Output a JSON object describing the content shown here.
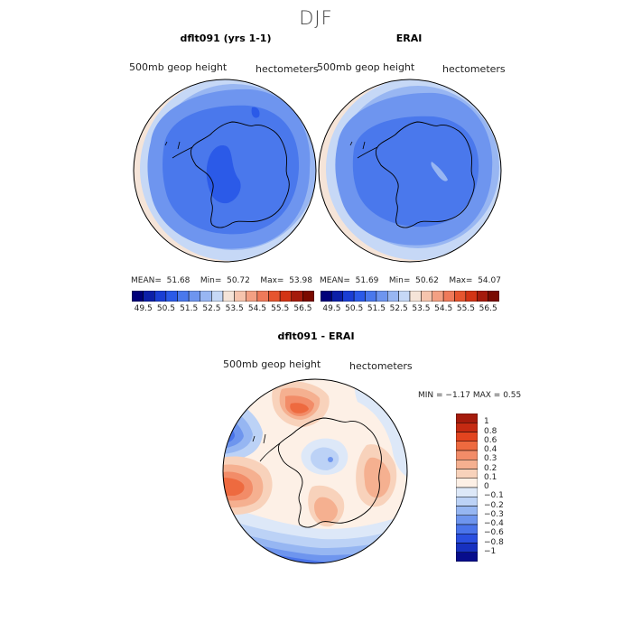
{
  "figure": {
    "title": "DJF",
    "variable_label": "500mb geop height",
    "units_label": "hectometers"
  },
  "panels": {
    "model": {
      "title": "dflt091 (yrs 1-1)",
      "stats": {
        "mean_label": "MEAN=",
        "mean": "51.68",
        "min_label": "Min=",
        "min": "50.72",
        "max_label": "Max=",
        "max": "53.98"
      }
    },
    "obs": {
      "title": "ERAI",
      "stats": {
        "mean_label": "MEAN=",
        "mean": "51.69",
        "min_label": "Min=",
        "min": "50.62",
        "max_label": "Max=",
        "max": "54.07"
      }
    },
    "diff": {
      "title": "dflt091 - ERAI",
      "stats_text": "MIN = −1.17 MAX = 0.55"
    }
  },
  "chart_data": [
    {
      "type": "heatmap",
      "projection": "south-polar-stereographic",
      "title": "dflt091 (yrs 1-1)",
      "variable": "500mb geop height",
      "units": "hectometers",
      "mean": 51.68,
      "min": 50.72,
      "max": 53.98,
      "colorbar": {
        "levels": [
          49.5,
          50.0,
          50.5,
          51.0,
          51.5,
          52.0,
          52.5,
          53.0,
          53.5,
          54.0,
          54.5,
          55.0,
          55.5,
          56.0,
          56.5
        ],
        "tick_labels": [
          "49.5",
          "50.5",
          "51.5",
          "52.5",
          "53.5",
          "54.5",
          "55.5",
          "56.5"
        ],
        "colors": [
          "#00007a",
          "#0c1fa8",
          "#1a3ed4",
          "#2b5ae8",
          "#4a78ec",
          "#6e95ef",
          "#98b6f2",
          "#c6d8f6",
          "#f5e4d8",
          "#f6c4ad",
          "#f3a083",
          "#ef7a5a",
          "#e6552f",
          "#d33415",
          "#a51b0c",
          "#7a0a00"
        ]
      }
    },
    {
      "type": "heatmap",
      "projection": "south-polar-stereographic",
      "title": "ERAI",
      "variable": "500mb geop height",
      "units": "hectometers",
      "mean": 51.69,
      "min": 50.62,
      "max": 54.07,
      "colorbar": {
        "levels": [
          49.5,
          50.0,
          50.5,
          51.0,
          51.5,
          52.0,
          52.5,
          53.0,
          53.5,
          54.0,
          54.5,
          55.0,
          55.5,
          56.0,
          56.5
        ],
        "tick_labels": [
          "49.5",
          "50.5",
          "51.5",
          "52.5",
          "53.5",
          "54.5",
          "55.5",
          "56.5"
        ],
        "colors": [
          "#00007a",
          "#0c1fa8",
          "#1a3ed4",
          "#2b5ae8",
          "#4a78ec",
          "#6e95ef",
          "#98b6f2",
          "#c6d8f6",
          "#f5e4d8",
          "#f6c4ad",
          "#f3a083",
          "#ef7a5a",
          "#e6552f",
          "#d33415",
          "#a51b0c",
          "#7a0a00"
        ]
      }
    },
    {
      "type": "heatmap",
      "projection": "south-polar-stereographic",
      "title": "dflt091 - ERAI",
      "variable": "500mb geop height",
      "units": "hectometers",
      "min": -1.17,
      "max": 0.55,
      "colorbar": {
        "orientation": "vertical",
        "tick_labels": [
          "1",
          "0.8",
          "0.6",
          "0.4",
          "0.3",
          "0.2",
          "0.1",
          "0",
          "−0.1",
          "−0.2",
          "−0.3",
          "−0.4",
          "−0.6",
          "−0.8",
          "−1"
        ],
        "colors": [
          "#a51b0c",
          "#c52a12",
          "#e2441f",
          "#ee6a3f",
          "#f28c68",
          "#f5b090",
          "#f8d2bb",
          "#fdf0e6",
          "#dde8f8",
          "#bcd2f6",
          "#96b6f2",
          "#6e95ee",
          "#4a74ea",
          "#2a4fe0",
          "#1731c0",
          "#070d8c"
        ]
      }
    }
  ]
}
